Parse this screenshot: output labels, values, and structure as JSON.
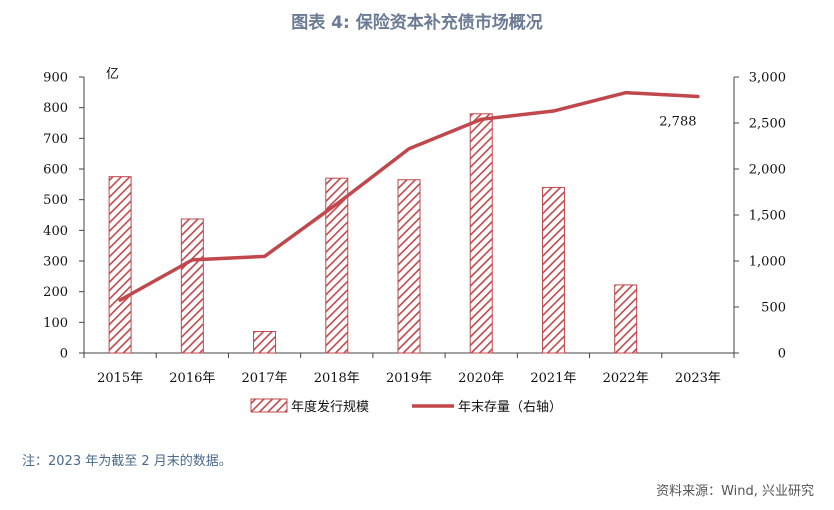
{
  "page": {
    "title": "图表 4:  保险资本补充债市场概况",
    "note": "注：2023 年为截至 2 月末的数据。",
    "source": "资料来源：Wind, 兴业研究"
  },
  "colors": {
    "bar": "#c0474b",
    "line": "#c0474b",
    "title": "#6b7b94"
  },
  "chart_data": {
    "type": "bar",
    "categories": [
      "2015年",
      "2016年",
      "2017年",
      "2018年",
      "2019年",
      "2020年",
      "2021年",
      "2022年",
      "2023年"
    ],
    "left_unit": "亿",
    "ylim_left": [
      0,
      900
    ],
    "yticks_left": [
      0,
      100,
      200,
      300,
      400,
      500,
      600,
      700,
      800,
      900
    ],
    "ylim_right": [
      0,
      3000
    ],
    "yticks_right": [
      "0",
      "500",
      "1,000",
      "1,500",
      "2,000",
      "2,500",
      "3,000"
    ],
    "series": [
      {
        "name": "年度发行规模",
        "type": "bar",
        "axis": "left",
        "pattern": "diagonal-hatch",
        "values": [
          575,
          437,
          70,
          570,
          565,
          780,
          540,
          222,
          0
        ]
      },
      {
        "name": "年末存量（右轴）",
        "type": "line",
        "axis": "right",
        "values": [
          575,
          1012,
          1050,
          1620,
          2220,
          2540,
          2630,
          2830,
          2788
        ]
      }
    ],
    "annotations": [
      {
        "text": "2,788",
        "series": 1,
        "index": 8
      }
    ],
    "legend_position": "bottom",
    "grid": false
  }
}
